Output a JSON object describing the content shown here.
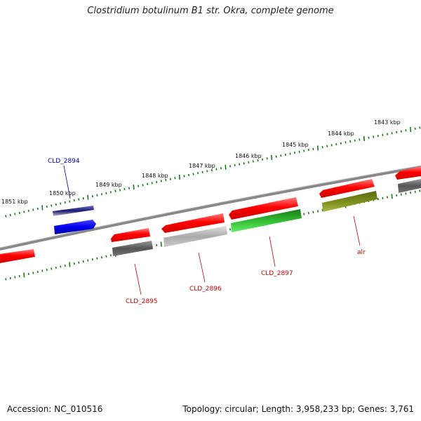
{
  "title": "Clostridium botulinum B1 str. Okra, complete genome",
  "footer": {
    "accession": "Accession: NC_010516",
    "summary": "Topology: circular; Length: 3,958,233 bp; Genes: 3,761"
  },
  "ruler_labels": [
    "1851 kbp",
    "1850 kbp",
    "1849 kbp",
    "1848 kbp",
    "1847 kbp",
    "1846 kbp",
    "1845 kbp",
    "1844 kbp",
    "1843 kbp"
  ],
  "gene_labels": [
    {
      "name": "CLD_2894",
      "color": "#0000aa"
    },
    {
      "name": "CLD_2895",
      "color": "#cc0000"
    },
    {
      "name": "CLD_2896",
      "color": "#cc0000"
    },
    {
      "name": "CLD_2897",
      "color": "#cc0000"
    },
    {
      "name": "alr",
      "color": "#cc0000"
    }
  ],
  "colors": {
    "cds": "#ff0000",
    "gene_grey": "#666666",
    "gene_light": "#bbbbbb",
    "gene_green": "#33bb33",
    "gene_olive": "#7a8c1a",
    "gene_blue": "#0000ee",
    "gene_navy": "#1a1a6e",
    "ruler_tick": "#1a7a1a",
    "backbone": "#888888"
  }
}
